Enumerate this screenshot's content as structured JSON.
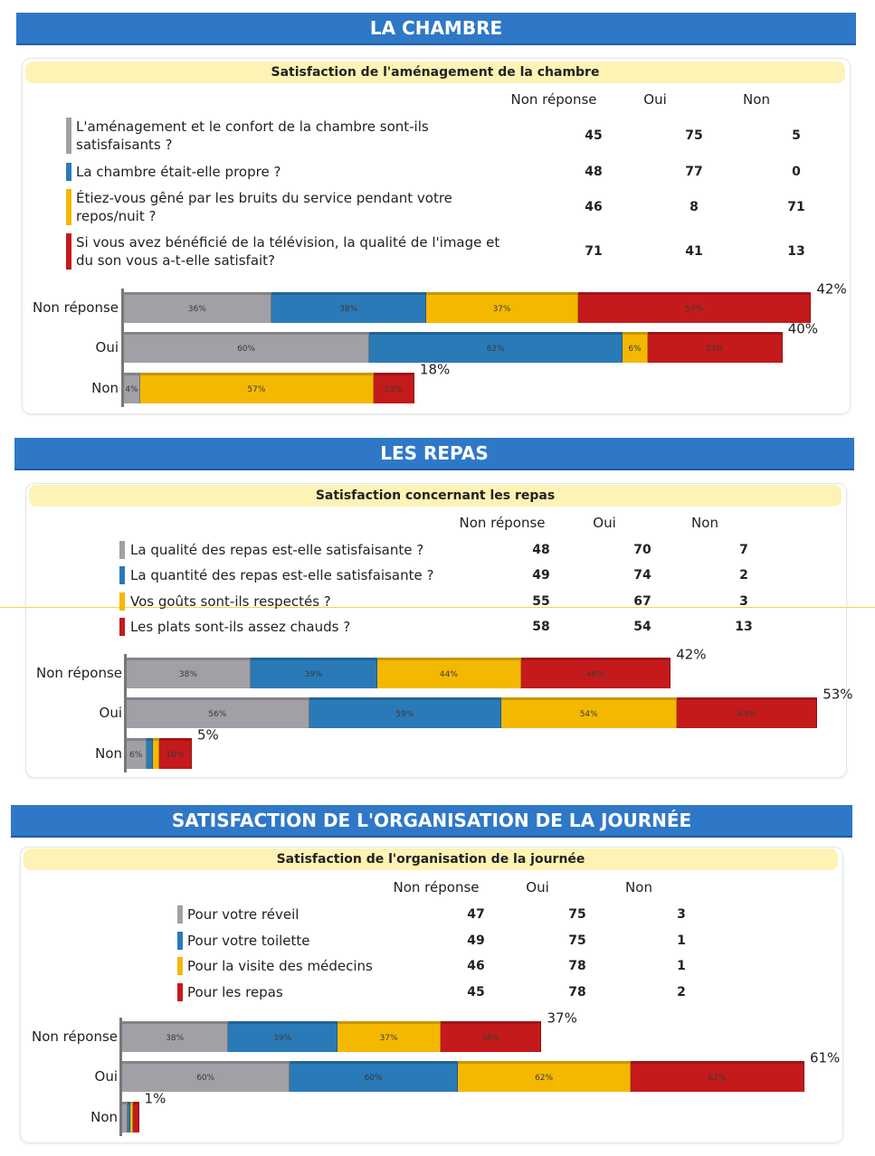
{
  "sections": [
    {
      "title": "LA CHAMBRE",
      "subtitle": "Satisfaction de l'aménagement de la chambre",
      "columns": [
        "Non réponse",
        "Oui",
        "Non"
      ],
      "rows": [
        {
          "label": "L'aménagement et le confort de la chambre sont-ils satisfaisants ?",
          "color": "#a0a0a6",
          "values": [
            45,
            75,
            5
          ]
        },
        {
          "label": "La chambre était-elle propre ?",
          "color": "#2a7ab8",
          "values": [
            48,
            77,
            0
          ]
        },
        {
          "label": "Étiez-vous gêné par les bruits du service pendant votre repos/nuit ?",
          "color": "#f5b800",
          "values": [
            46,
            8,
            71
          ]
        },
        {
          "label": "Si vous avez bénéficié de la télévision, la qualité de l'image et du son vous a-t-elle satisfait?",
          "color": "#c41a1c",
          "values": [
            71,
            41,
            13
          ]
        }
      ],
      "chart": {
        "type": "bar",
        "stacked": true,
        "orientation": "horizontal",
        "bars": [
          {
            "name": "Non réponse",
            "values": [
              36,
              38,
              37,
              57
            ],
            "value_labels": [
              "36%",
              "38%",
              "37%",
              "57%"
            ],
            "total": 42,
            "total_label": "42%"
          },
          {
            "name": "Oui",
            "values": [
              60,
              62,
              6,
              33
            ],
            "value_labels": [
              "60%",
              "62%",
              "6%",
              "33%"
            ],
            "total": 40,
            "total_label": "40%"
          },
          {
            "name": "Non",
            "values": [
              4,
              0,
              57,
              10
            ],
            "value_labels": [
              "4%",
              null,
              "57%",
              "10%"
            ],
            "total": 18,
            "total_label": "18%"
          }
        ]
      }
    },
    {
      "title": "LES REPAS",
      "subtitle": "Satisfaction concernant les repas",
      "columns": [
        "Non réponse",
        "Oui",
        "Non"
      ],
      "rows": [
        {
          "label": "La qualité des repas est-elle satisfaisante ?",
          "color": "#a0a0a6",
          "values": [
            48,
            70,
            7
          ]
        },
        {
          "label": "La quantité des repas est-elle satisfaisante ?",
          "color": "#2a7ab8",
          "values": [
            49,
            74,
            2
          ]
        },
        {
          "label": "Vos goûts sont-ils respectés ?",
          "color": "#f5b800",
          "values": [
            55,
            67,
            3
          ]
        },
        {
          "label": "Les plats sont-ils assez chauds ?",
          "color": "#c41a1c",
          "values": [
            58,
            54,
            13
          ]
        }
      ],
      "chart": {
        "type": "bar",
        "stacked": true,
        "orientation": "horizontal",
        "bars": [
          {
            "name": "Non réponse",
            "values": [
              38,
              39,
              44,
              46
            ],
            "value_labels": [
              "38%",
              "39%",
              "44%",
              "46%"
            ],
            "total": 42,
            "total_label": "42%"
          },
          {
            "name": "Oui",
            "values": [
              56,
              59,
              54,
              43
            ],
            "value_labels": [
              "56%",
              "59%",
              "54%",
              "43%"
            ],
            "total": 53,
            "total_label": "53%"
          },
          {
            "name": "Non",
            "values": [
              6,
              2,
              2,
              10
            ],
            "value_labels": [
              "6%",
              null,
              null,
              "10%"
            ],
            "total": 5,
            "total_label": "5%"
          }
        ]
      }
    },
    {
      "title": "SATISFACTION DE L'ORGANISATION DE LA JOURNÉE",
      "subtitle": "Satisfaction de l'organisation de la journée",
      "columns": [
        "Non réponse",
        "Oui",
        "Non"
      ],
      "rows": [
        {
          "label": "Pour votre réveil",
          "color": "#a0a0a6",
          "values": [
            47,
            75,
            3
          ]
        },
        {
          "label": "Pour votre toilette",
          "color": "#2a7ab8",
          "values": [
            49,
            75,
            1
          ]
        },
        {
          "label": "Pour la visite des médecins",
          "color": "#f5b800",
          "values": [
            46,
            78,
            1
          ]
        },
        {
          "label": "Pour les repas",
          "color": "#c41a1c",
          "values": [
            45,
            78,
            2
          ]
        }
      ],
      "chart": {
        "type": "bar",
        "stacked": true,
        "orientation": "horizontal",
        "bars": [
          {
            "name": "Non réponse",
            "values": [
              38,
              39,
              37,
              36
            ],
            "value_labels": [
              "38%",
              "39%",
              "37%",
              "36%"
            ],
            "total": 37,
            "total_label": "37%"
          },
          {
            "name": "Oui",
            "values": [
              60,
              60,
              62,
              62
            ],
            "value_labels": [
              "60%",
              "60%",
              "62%",
              "62%"
            ],
            "total": 61,
            "total_label": "61%"
          },
          {
            "name": "Non",
            "values": [
              2,
              1,
              1,
              2
            ],
            "value_labels": [
              null,
              null,
              null,
              null
            ],
            "total": 1,
            "total_label": "1%"
          }
        ]
      }
    }
  ]
}
